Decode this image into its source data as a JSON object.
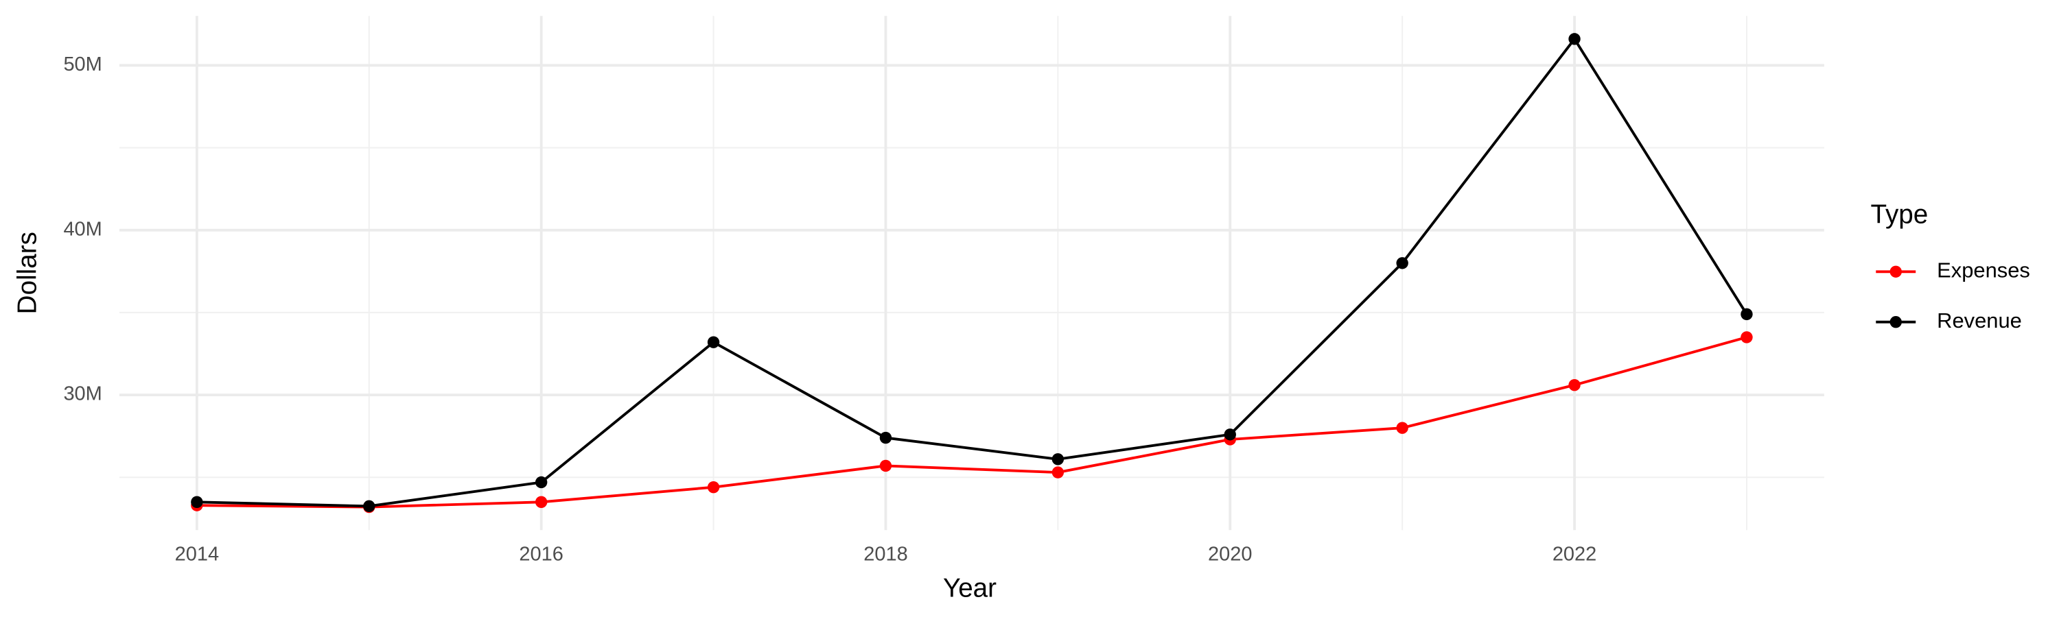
{
  "chart_data": {
    "type": "line",
    "x_label": "Year",
    "y_label": "Dollars",
    "legend_title": "Type",
    "x": [
      2014,
      2015,
      2016,
      2017,
      2018,
      2019,
      2020,
      2021,
      2022,
      2023
    ],
    "series": [
      {
        "name": "Expenses",
        "color": "#ff0000",
        "values": [
          23300000,
          23200000,
          23500000,
          24400000,
          25700000,
          25300000,
          27300000,
          28000000,
          30600000,
          33500000
        ]
      },
      {
        "name": "Revenue",
        "color": "#000000",
        "values": [
          23500000,
          23250000,
          24700000,
          33200000,
          27400000,
          26100000,
          27600000,
          38000000,
          51600000,
          34900000
        ]
      }
    ],
    "xlim": [
      2013.55,
      2023.45
    ],
    "xticks": [
      2014,
      2016,
      2018,
      2020,
      2022
    ],
    "ylim": [
      21800000,
      53000000
    ],
    "yticks": [
      {
        "value": 30000000,
        "label": "30M"
      },
      {
        "value": 40000000,
        "label": "40M"
      },
      {
        "value": 50000000,
        "label": "50M"
      }
    ],
    "grid": true,
    "legend_position": "right"
  }
}
